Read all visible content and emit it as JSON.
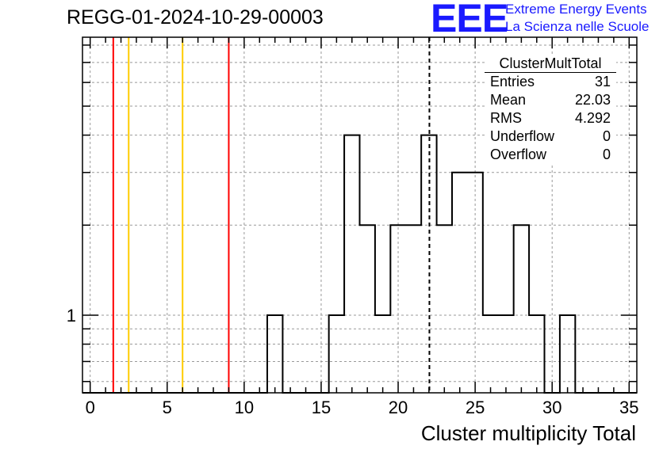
{
  "header": {
    "run_title": "REGG-01-2024-10-29-00003"
  },
  "logo": {
    "mark": "EEE",
    "line1": "Extreme Energy Events",
    "line2": "La Scienza nelle Scuole",
    "color": "#1a1aff"
  },
  "stats_box": {
    "title": "ClusterMultTotal",
    "rows": [
      {
        "label": "Entries",
        "value": "31"
      },
      {
        "label": "Mean",
        "value": "22.03"
      },
      {
        "label": "RMS",
        "value": "4.292"
      },
      {
        "label": "Underflow",
        "value": "0"
      },
      {
        "label": "Overflow",
        "value": "0"
      }
    ]
  },
  "chart_data": {
    "type": "histogram",
    "title": "REGG-01-2024-10-29-00003",
    "xlabel": "Cluster multiplicity Total",
    "ylabel": "",
    "x_range": [
      -0.5,
      35.5
    ],
    "x_ticks": [
      0,
      5,
      10,
      15,
      20,
      25,
      30,
      35
    ],
    "y_scale": "log",
    "y_range": [
      0.55,
      8.5
    ],
    "y_tick_labels": [
      {
        "value": 1,
        "label": "1"
      }
    ],
    "grid": true,
    "bin_width": 1,
    "bins": [
      {
        "x": 12,
        "count": 1
      },
      {
        "x": 16,
        "count": 1
      },
      {
        "x": 17,
        "count": 4
      },
      {
        "x": 18,
        "count": 2
      },
      {
        "x": 19,
        "count": 1
      },
      {
        "x": 20,
        "count": 2
      },
      {
        "x": 21,
        "count": 2
      },
      {
        "x": 22,
        "count": 4
      },
      {
        "x": 23,
        "count": 2
      },
      {
        "x": 24,
        "count": 3
      },
      {
        "x": 25,
        "count": 3
      },
      {
        "x": 26,
        "count": 1
      },
      {
        "x": 27,
        "count": 1
      },
      {
        "x": 28,
        "count": 2
      },
      {
        "x": 29,
        "count": 1
      },
      {
        "x": 31,
        "count": 1
      }
    ],
    "mean_marker": {
      "x": 22.03,
      "style": "dashed",
      "color": "#000000"
    },
    "reference_lines": [
      {
        "x": 1.5,
        "color": "#ff0000"
      },
      {
        "x": 2.5,
        "color": "#ffcc00"
      },
      {
        "x": 6,
        "color": "#ffcc00"
      },
      {
        "x": 9,
        "color": "#ff0000"
      }
    ]
  }
}
